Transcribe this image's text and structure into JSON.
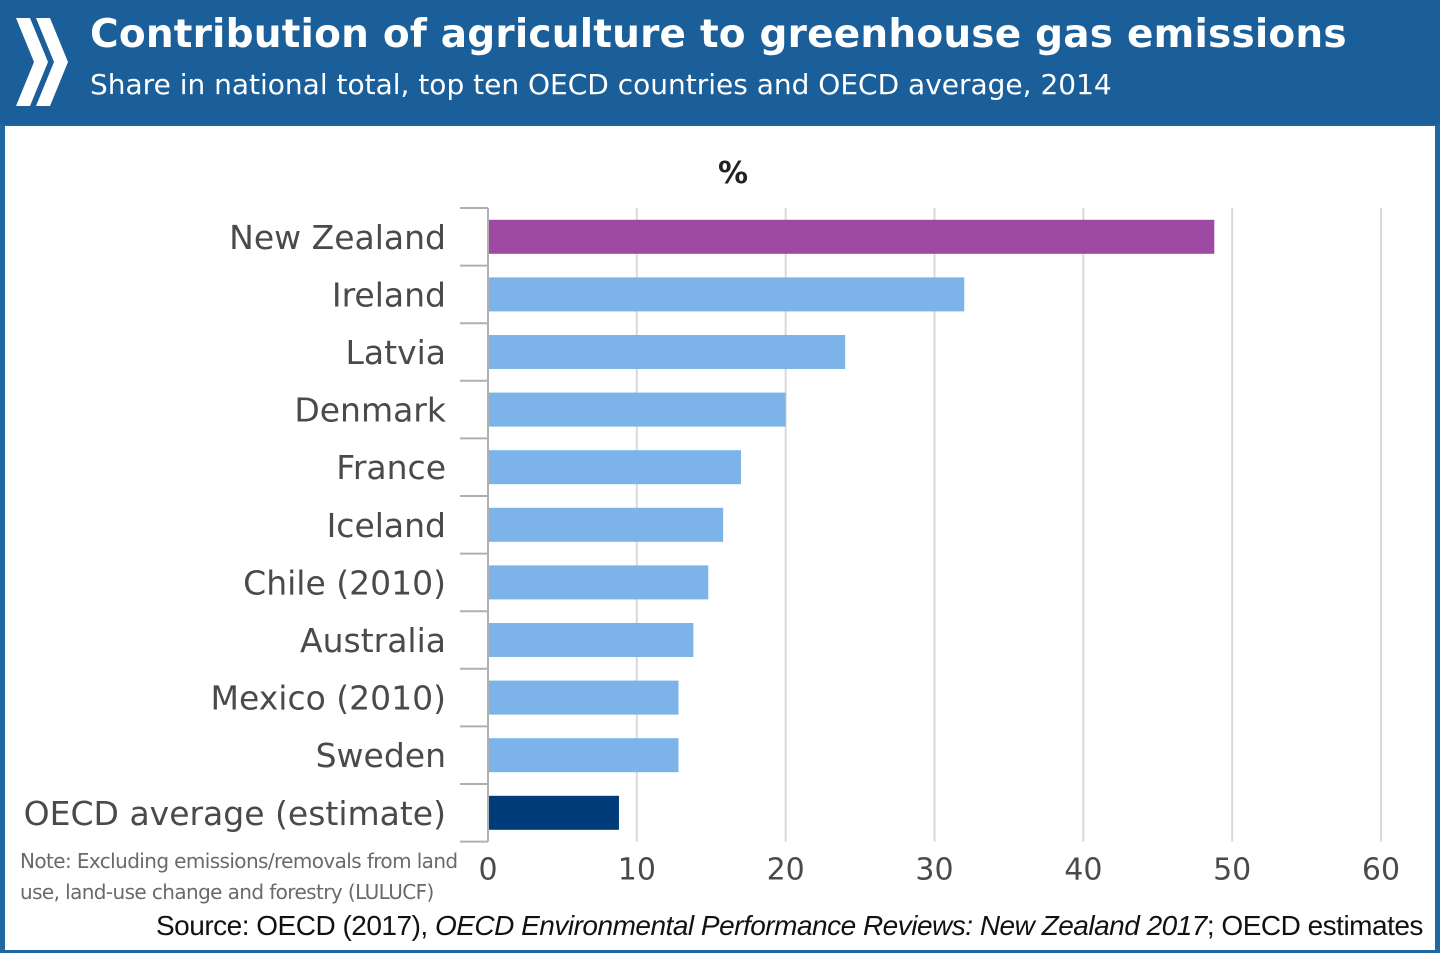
{
  "header": {
    "title": "Contribution of agriculture to greenhouse gas emissions",
    "subtitle": "Share in national total, top ten OECD countries and OECD average, 2014",
    "logo_icon": "oecd-chevron-icon"
  },
  "chart_data": {
    "type": "bar",
    "orientation": "horizontal",
    "unit_label": "%",
    "categories": [
      "New Zealand",
      "Ireland",
      "Latvia",
      "Denmark",
      "France",
      "Iceland",
      "Chile (2010)",
      "Australia",
      "Mexico (2010)",
      "Sweden",
      "OECD average (estimate)"
    ],
    "values": [
      48.8,
      32,
      24,
      20,
      17,
      15.8,
      14.8,
      13.8,
      12.8,
      12.8,
      8.8
    ],
    "colors": [
      "#9e4aa2",
      "#7cb4ea",
      "#7cb4ea",
      "#7cb4ea",
      "#7cb4ea",
      "#7cb4ea",
      "#7cb4ea",
      "#7cb4ea",
      "#7cb4ea",
      "#7cb4ea",
      "#003b7a"
    ],
    "xlim": [
      0,
      60
    ],
    "xticks": [
      "0",
      "10",
      "20",
      "30",
      "40",
      "50",
      "60"
    ],
    "grid": true
  },
  "footer": {
    "note": "Note: Excluding emissions/removals from land use, land-use change and forestry (LULUCF)",
    "source_prefix": "Source: OECD (2017), ",
    "source_title": "OECD Environmental Performance Reviews: New Zealand 2017",
    "source_suffix": "; OECD estimates"
  },
  "colors": {
    "header_bg": "#1a5f99",
    "grid": "#d9d9d9",
    "axis": "#b0b0b0"
  }
}
